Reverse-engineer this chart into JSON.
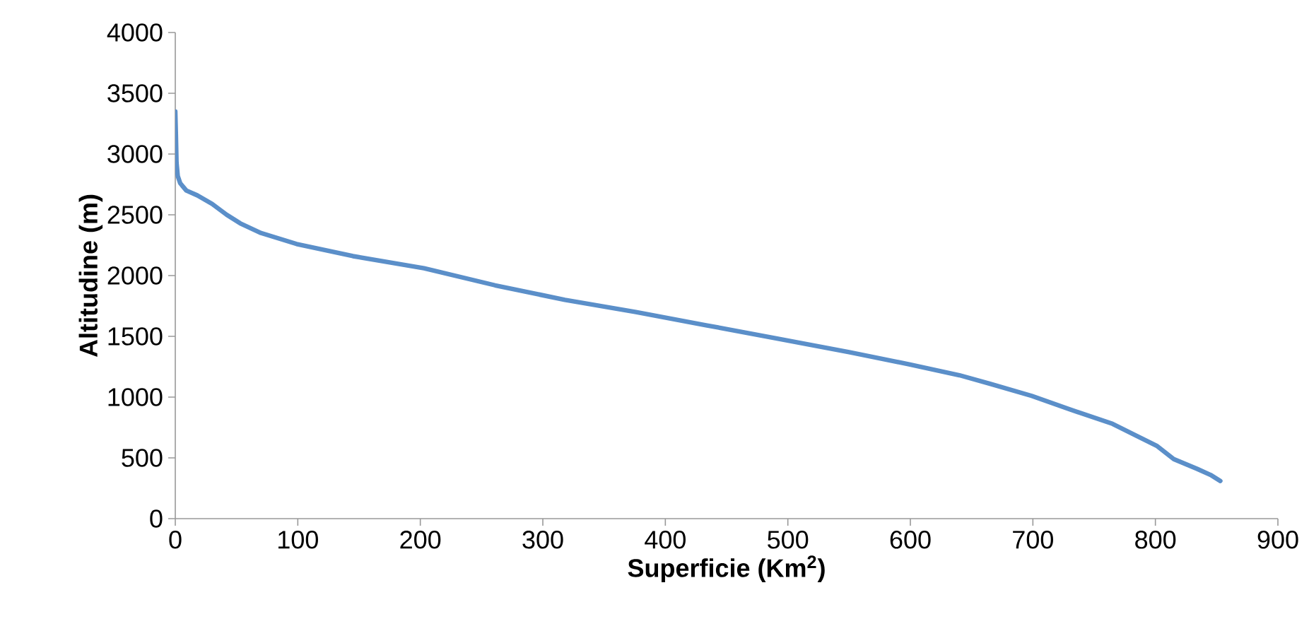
{
  "chart_data": {
    "type": "line",
    "xlabel": "Superficie (Km$^{2}$)",
    "ylabel": "Altitudine (m)",
    "series": [
      {
        "color": "#5b8fc9",
        "x": [
          0,
          0.5,
          1,
          2,
          4,
          9,
          18,
          30,
          42,
          53,
          70,
          99,
          145,
          203,
          261,
          318,
          376,
          434,
          492,
          550,
          599,
          640,
          665,
          699,
          730,
          765,
          785,
          801,
          815,
          834,
          845,
          853
        ],
        "values": [
          3350,
          3160,
          2930,
          2820,
          2760,
          2700,
          2660,
          2590,
          2500,
          2430,
          2350,
          2260,
          2160,
          2060,
          1920,
          1800,
          1700,
          1590,
          1480,
          1370,
          1270,
          1180,
          1110,
          1010,
          900,
          780,
          680,
          600,
          490,
          410,
          360,
          310
        ]
      }
    ],
    "xlim": [
      0,
      900
    ],
    "xticks": [
      0,
      100,
      200,
      300,
      400,
      500,
      600,
      700,
      800,
      900
    ],
    "ylim": [
      0,
      4000
    ],
    "yticks": [
      0,
      500,
      1000,
      1500,
      2000,
      2500,
      3000,
      3500,
      4000
    ],
    "marker": "none",
    "line_style": "solid"
  }
}
